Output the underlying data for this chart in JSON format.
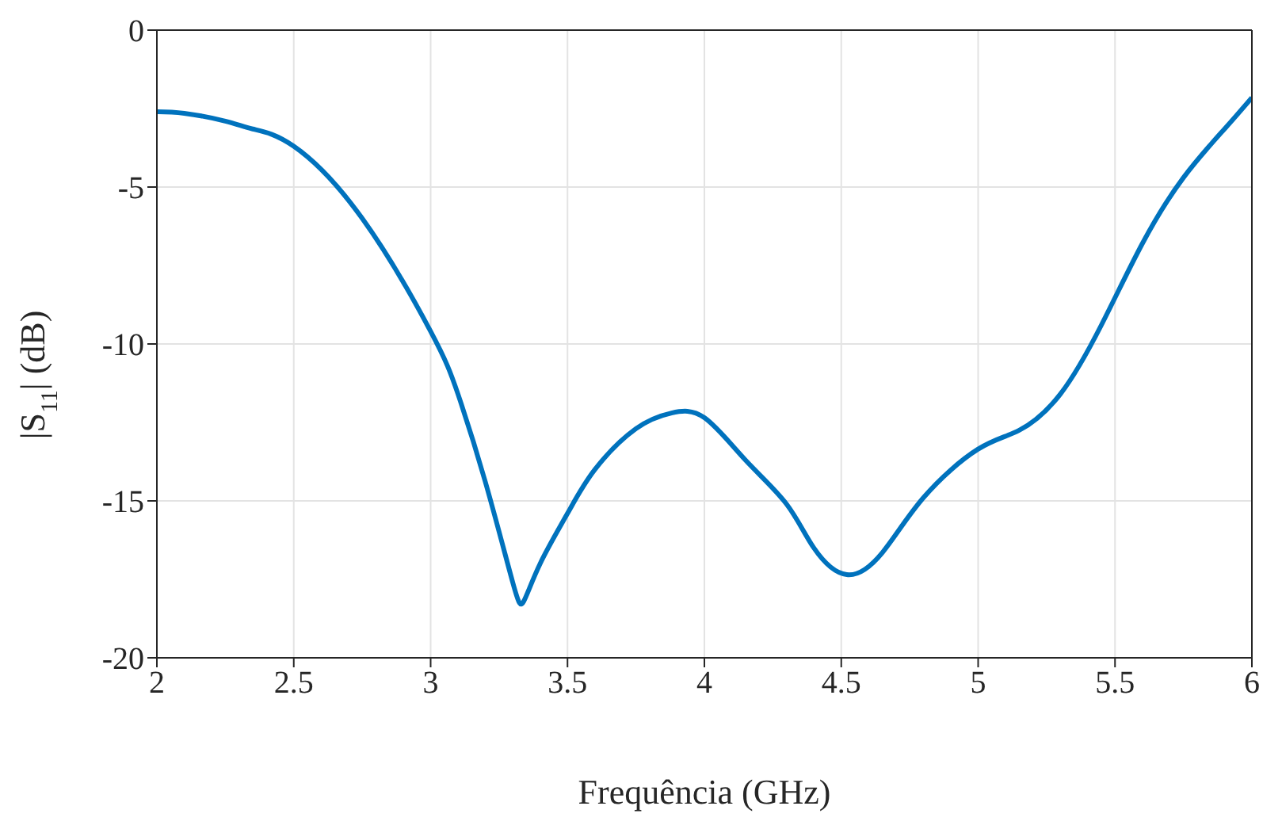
{
  "chart_data": {
    "type": "line",
    "xlabel": "Frequência (GHz)",
    "ylabel": "|S$_{11}$| (dB)",
    "x": [
      2,
      2.1,
      2.25,
      2.35,
      2.5,
      2.75,
      3,
      3.1,
      3.2,
      3.3,
      3.34,
      3.4,
      3.5,
      3.6,
      3.75,
      3.88,
      4,
      4.15,
      4.3,
      4.4,
      4.52,
      4.65,
      4.8,
      5,
      5.15,
      5.3,
      5.45,
      5.6,
      5.75,
      5.9,
      6
    ],
    "series": [
      {
        "color": "#0072bd",
        "values": [
          -2.6,
          -2.65,
          -2.9,
          -3.15,
          -3.7,
          -6.0,
          -9.6,
          -11.6,
          -14.4,
          -17.6,
          -18.2,
          -17.0,
          -15.4,
          -14.0,
          -12.7,
          -12.2,
          -12.35,
          -13.7,
          -15.1,
          -16.5,
          -17.35,
          -16.65,
          -14.9,
          -13.35,
          -12.75,
          -11.6,
          -9.4,
          -6.8,
          -4.7,
          -3.15,
          -2.15
        ]
      }
    ],
    "xlim": [
      2,
      6
    ],
    "xticks": [
      2,
      2.5,
      3,
      3.5,
      4,
      4.5,
      5,
      5.5,
      6
    ],
    "ylim": [
      -20,
      0
    ],
    "yticks": [
      -20,
      -15,
      -10,
      -5,
      0
    ],
    "grid": true,
    "line_style": "solid"
  }
}
